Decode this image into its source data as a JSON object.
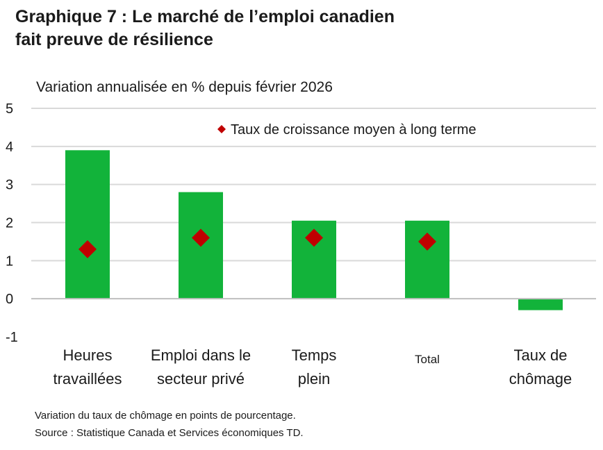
{
  "title": {
    "line1": "Graphique 7 : Le marché de l’emploi canadien",
    "line2": "fait preuve de résilience"
  },
  "chart_data": {
    "type": "bar",
    "subtitle": "Variation annualisée en % depuis février 2026",
    "categories": [
      [
        "Heures",
        "travaillées"
      ],
      [
        "Emploi dans le",
        "secteur privé"
      ],
      [
        "Temps",
        "plein"
      ],
      [
        "Total"
      ],
      [
        "Taux de",
        "chômage"
      ]
    ],
    "series": [
      {
        "values": [
          3.9,
          2.8,
          2.05,
          2.05,
          -0.3
        ]
      },
      {
        "name": "Taux de croissance moyen à long terme",
        "type": "scatter",
        "marker": "diamond",
        "values": [
          1.3,
          1.6,
          1.6,
          1.5,
          null
        ]
      }
    ],
    "yticks": [
      "5",
      "4",
      "3",
      "2",
      "1",
      "0",
      "-1"
    ],
    "ylim": [
      -1,
      5
    ],
    "grid": true,
    "legend_position": "top-right",
    "colors": {
      "bar": "#12b33a",
      "marker": "#c00000",
      "grid": "#d9d9d9",
      "baseline": "#bfbfbf"
    }
  },
  "notes": {
    "line1": "Variation du taux de chômage en points de pourcentage.",
    "line2": "Source : Statistique Canada et Services économiques TD."
  }
}
